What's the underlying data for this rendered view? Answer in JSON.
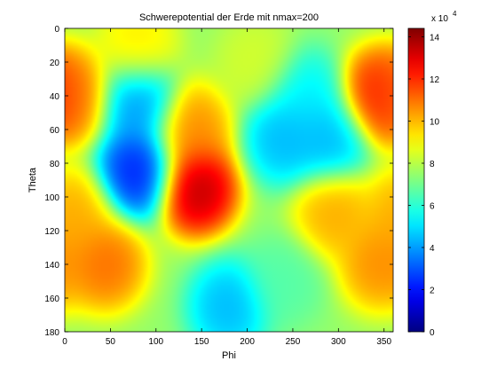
{
  "chart_data": {
    "type": "heatmap",
    "title": "Schwerepotential der Erde mit nmax=200",
    "xlabel": "Phi",
    "ylabel": "Theta",
    "xlim": [
      0,
      360
    ],
    "ylim": [
      0,
      180
    ],
    "y_reversed": true,
    "x_ticks": [
      0,
      50,
      100,
      150,
      200,
      250,
      300,
      350
    ],
    "y_ticks": [
      0,
      20,
      40,
      60,
      80,
      100,
      120,
      140,
      160,
      180
    ],
    "colorbar": {
      "label": "x 10",
      "exponent": "4",
      "range": [
        0,
        14.4
      ],
      "ticks": [
        0,
        2,
        4,
        6,
        8,
        10,
        12,
        14
      ],
      "colormap": "jet"
    },
    "field_blobs": [
      {
        "phi": 80,
        "theta": 85,
        "value": 1.5
      },
      {
        "phi": 80,
        "theta": 45,
        "value": 3.5
      },
      {
        "phi": 145,
        "theta": 95,
        "value": 14.4
      },
      {
        "phi": 140,
        "theta": 60,
        "value": 11.0
      },
      {
        "phi": 45,
        "theta": 140,
        "value": 11.5
      },
      {
        "phi": 10,
        "theta": 110,
        "value": 10.5
      },
      {
        "phi": 10,
        "theta": 40,
        "value": 11.0
      },
      {
        "phi": 345,
        "theta": 40,
        "value": 13.0
      },
      {
        "phi": 345,
        "theta": 140,
        "value": 11.0
      },
      {
        "phi": 295,
        "theta": 110,
        "value": 10.5
      },
      {
        "phi": 240,
        "theta": 65,
        "value": 4.0
      },
      {
        "phi": 290,
        "theta": 65,
        "value": 4.0
      },
      {
        "phi": 265,
        "theta": 40,
        "value": 5.0
      },
      {
        "phi": 180,
        "theta": 165,
        "value": 4.0
      },
      {
        "phi": 240,
        "theta": 150,
        "value": 6.5
      },
      {
        "phi": 210,
        "theta": 20,
        "value": 8.5
      },
      {
        "phi": 80,
        "theta": 10,
        "value": 9.5
      }
    ],
    "background_value": 7.5
  }
}
